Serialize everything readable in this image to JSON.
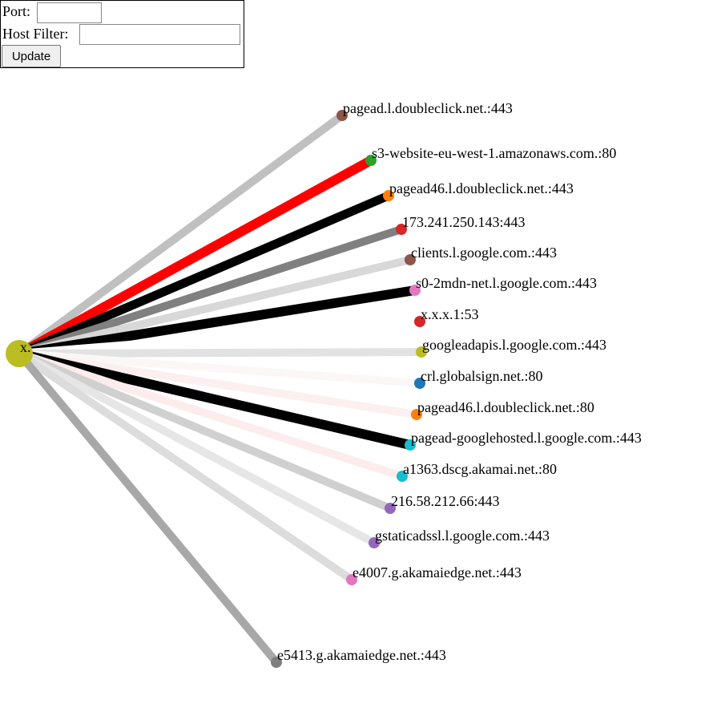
{
  "form": {
    "port_label": "Port:",
    "host_filter_label": "Host Filter:",
    "update_button": "Update"
  },
  "graph": {
    "center": {
      "label": "x.",
      "color": "#bcbd22"
    },
    "nodes": [
      {
        "label": "pagead.l.doubleclick.net.:443",
        "color": "#8c564b",
        "link_color": "#c0c0c0"
      },
      {
        "label": "s3-website-eu-west-1.amazonaws.com.:80",
        "color": "#2ca02c",
        "link_color": "#ff0000"
      },
      {
        "label": "pagead46.l.doubleclick.net.:443",
        "color": "#ff7f0e",
        "link_color": "#000000"
      },
      {
        "label": "173.241.250.143:443",
        "color": "#d62728",
        "link_color": "#808080"
      },
      {
        "label": "clients.l.google.com.:443",
        "color": "#8c564b",
        "link_color": "#d8d8d8"
      },
      {
        "label": "s0-2mdn-net.l.google.com.:443",
        "color": "#e377c2",
        "link_color": "#000000"
      },
      {
        "label": "x.x.x.1:53",
        "color": "#d62728",
        "link_color": "#ffffff"
      },
      {
        "label": "googleadapis.l.google.com.:443",
        "color": "#bcbd22",
        "link_color": "#e2e2e2"
      },
      {
        "label": "crl.globalsign.net.:80",
        "color": "#1f77b4",
        "link_color": "#fbf7f7"
      },
      {
        "label": "pagead46.l.doubleclick.net.:80",
        "color": "#ff7f0e",
        "link_color": "#fcefef"
      },
      {
        "label": "pagead-googlehosted.l.google.com.:443",
        "color": "#17becf",
        "link_color": "#000000"
      },
      {
        "label": "a1363.dscg.akamai.net.:80",
        "color": "#17becf",
        "link_color": "#fcecec"
      },
      {
        "label": "216.58.212.66:443",
        "color": "#9467bd",
        "link_color": "#d0d0d0"
      },
      {
        "label": "gstaticadssl.l.google.com.:443",
        "color": "#9467bd",
        "link_color": "#e6e6e6"
      },
      {
        "label": "e4007.g.akamaiedge.net.:443",
        "color": "#e377c2",
        "link_color": "#dcdcdc"
      },
      {
        "label": "e5413.g.akamaiedge.net.:443",
        "color": "#7f7f7f",
        "link_color": "#a8a8a8"
      }
    ]
  }
}
